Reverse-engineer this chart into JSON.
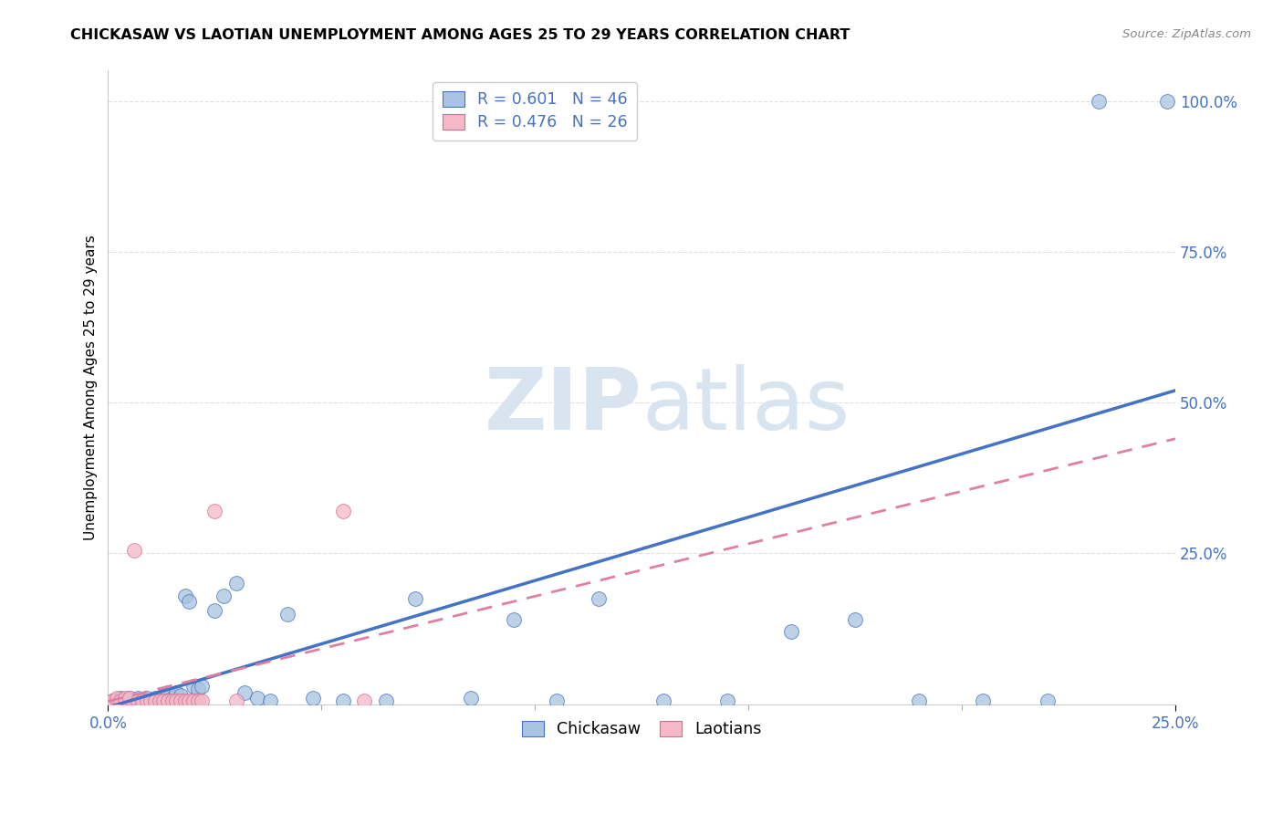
{
  "title": "CHICKASAW VS LAOTIAN UNEMPLOYMENT AMONG AGES 25 TO 29 YEARS CORRELATION CHART",
  "source": "Source: ZipAtlas.com",
  "ylabel": "Unemployment Among Ages 25 to 29 years",
  "xlim": [
    0.0,
    0.25
  ],
  "ylim": [
    0.0,
    1.05
  ],
  "ytick_vals": [
    0.0,
    0.25,
    0.5,
    0.75,
    1.0
  ],
  "ytick_labels": [
    "",
    "25.0%",
    "50.0%",
    "75.0%",
    "100.0%"
  ],
  "xtick_vals": [
    0.0,
    0.25
  ],
  "xtick_labels": [
    "0.0%",
    "25.0%"
  ],
  "minor_xticks": [
    0.05,
    0.1,
    0.15,
    0.2
  ],
  "legend_line1": "R = 0.601   N = 46",
  "legend_line2": "R = 0.476   N = 26",
  "chickasaw_color": "#a8c4e0",
  "chickasaw_edge": "#4472c4",
  "laotian_color": "#f4b8c8",
  "laotian_edge": "#d07090",
  "trendline_blue": "#4472c4",
  "trendline_pink": "#e080a0",
  "watermark_color": "#d8e4f0",
  "background_color": "#ffffff",
  "grid_color": "#dddddd",
  "tick_color": "#4472c4",
  "title_color": "#000000",
  "source_color": "#888888",
  "ylabel_color": "#000000",
  "scatter_size": 130,
  "chickasaw_x": [
    0.001,
    0.002,
    0.003,
    0.004,
    0.005,
    0.006,
    0.007,
    0.008,
    0.009,
    0.01,
    0.011,
    0.012,
    0.013,
    0.014,
    0.015,
    0.016,
    0.017,
    0.018,
    0.019,
    0.02,
    0.021,
    0.022,
    0.025,
    0.027,
    0.03,
    0.032,
    0.035,
    0.038,
    0.042,
    0.048,
    0.055,
    0.065,
    0.072,
    0.085,
    0.095,
    0.105,
    0.115,
    0.13,
    0.145,
    0.16,
    0.175,
    0.19,
    0.205,
    0.22,
    0.232,
    0.248
  ],
  "chickasaw_y": [
    0.005,
    0.005,
    0.01,
    0.005,
    0.01,
    0.005,
    0.01,
    0.005,
    0.01,
    0.005,
    0.01,
    0.01,
    0.015,
    0.02,
    0.01,
    0.02,
    0.015,
    0.18,
    0.17,
    0.03,
    0.025,
    0.03,
    0.155,
    0.18,
    0.2,
    0.02,
    0.01,
    0.005,
    0.15,
    0.01,
    0.005,
    0.005,
    0.175,
    0.01,
    0.14,
    0.005,
    0.175,
    0.005,
    0.005,
    0.12,
    0.14,
    0.005,
    0.005,
    0.005,
    1.0,
    1.0
  ],
  "laotian_x": [
    0.001,
    0.002,
    0.003,
    0.004,
    0.005,
    0.006,
    0.007,
    0.008,
    0.009,
    0.01,
    0.011,
    0.012,
    0.013,
    0.014,
    0.015,
    0.016,
    0.017,
    0.018,
    0.019,
    0.02,
    0.021,
    0.022,
    0.025,
    0.03,
    0.055,
    0.06
  ],
  "laotian_y": [
    0.005,
    0.01,
    0.005,
    0.01,
    0.01,
    0.255,
    0.005,
    0.005,
    0.005,
    0.005,
    0.005,
    0.005,
    0.005,
    0.005,
    0.005,
    0.005,
    0.005,
    0.005,
    0.005,
    0.005,
    0.005,
    0.005,
    0.32,
    0.005,
    0.32,
    0.005
  ],
  "blue_trend_x": [
    0.0,
    0.25
  ],
  "blue_trend_y": [
    -0.005,
    0.52
  ],
  "pink_trend_x": [
    0.0,
    0.25
  ],
  "pink_trend_y": [
    0.005,
    0.44
  ]
}
